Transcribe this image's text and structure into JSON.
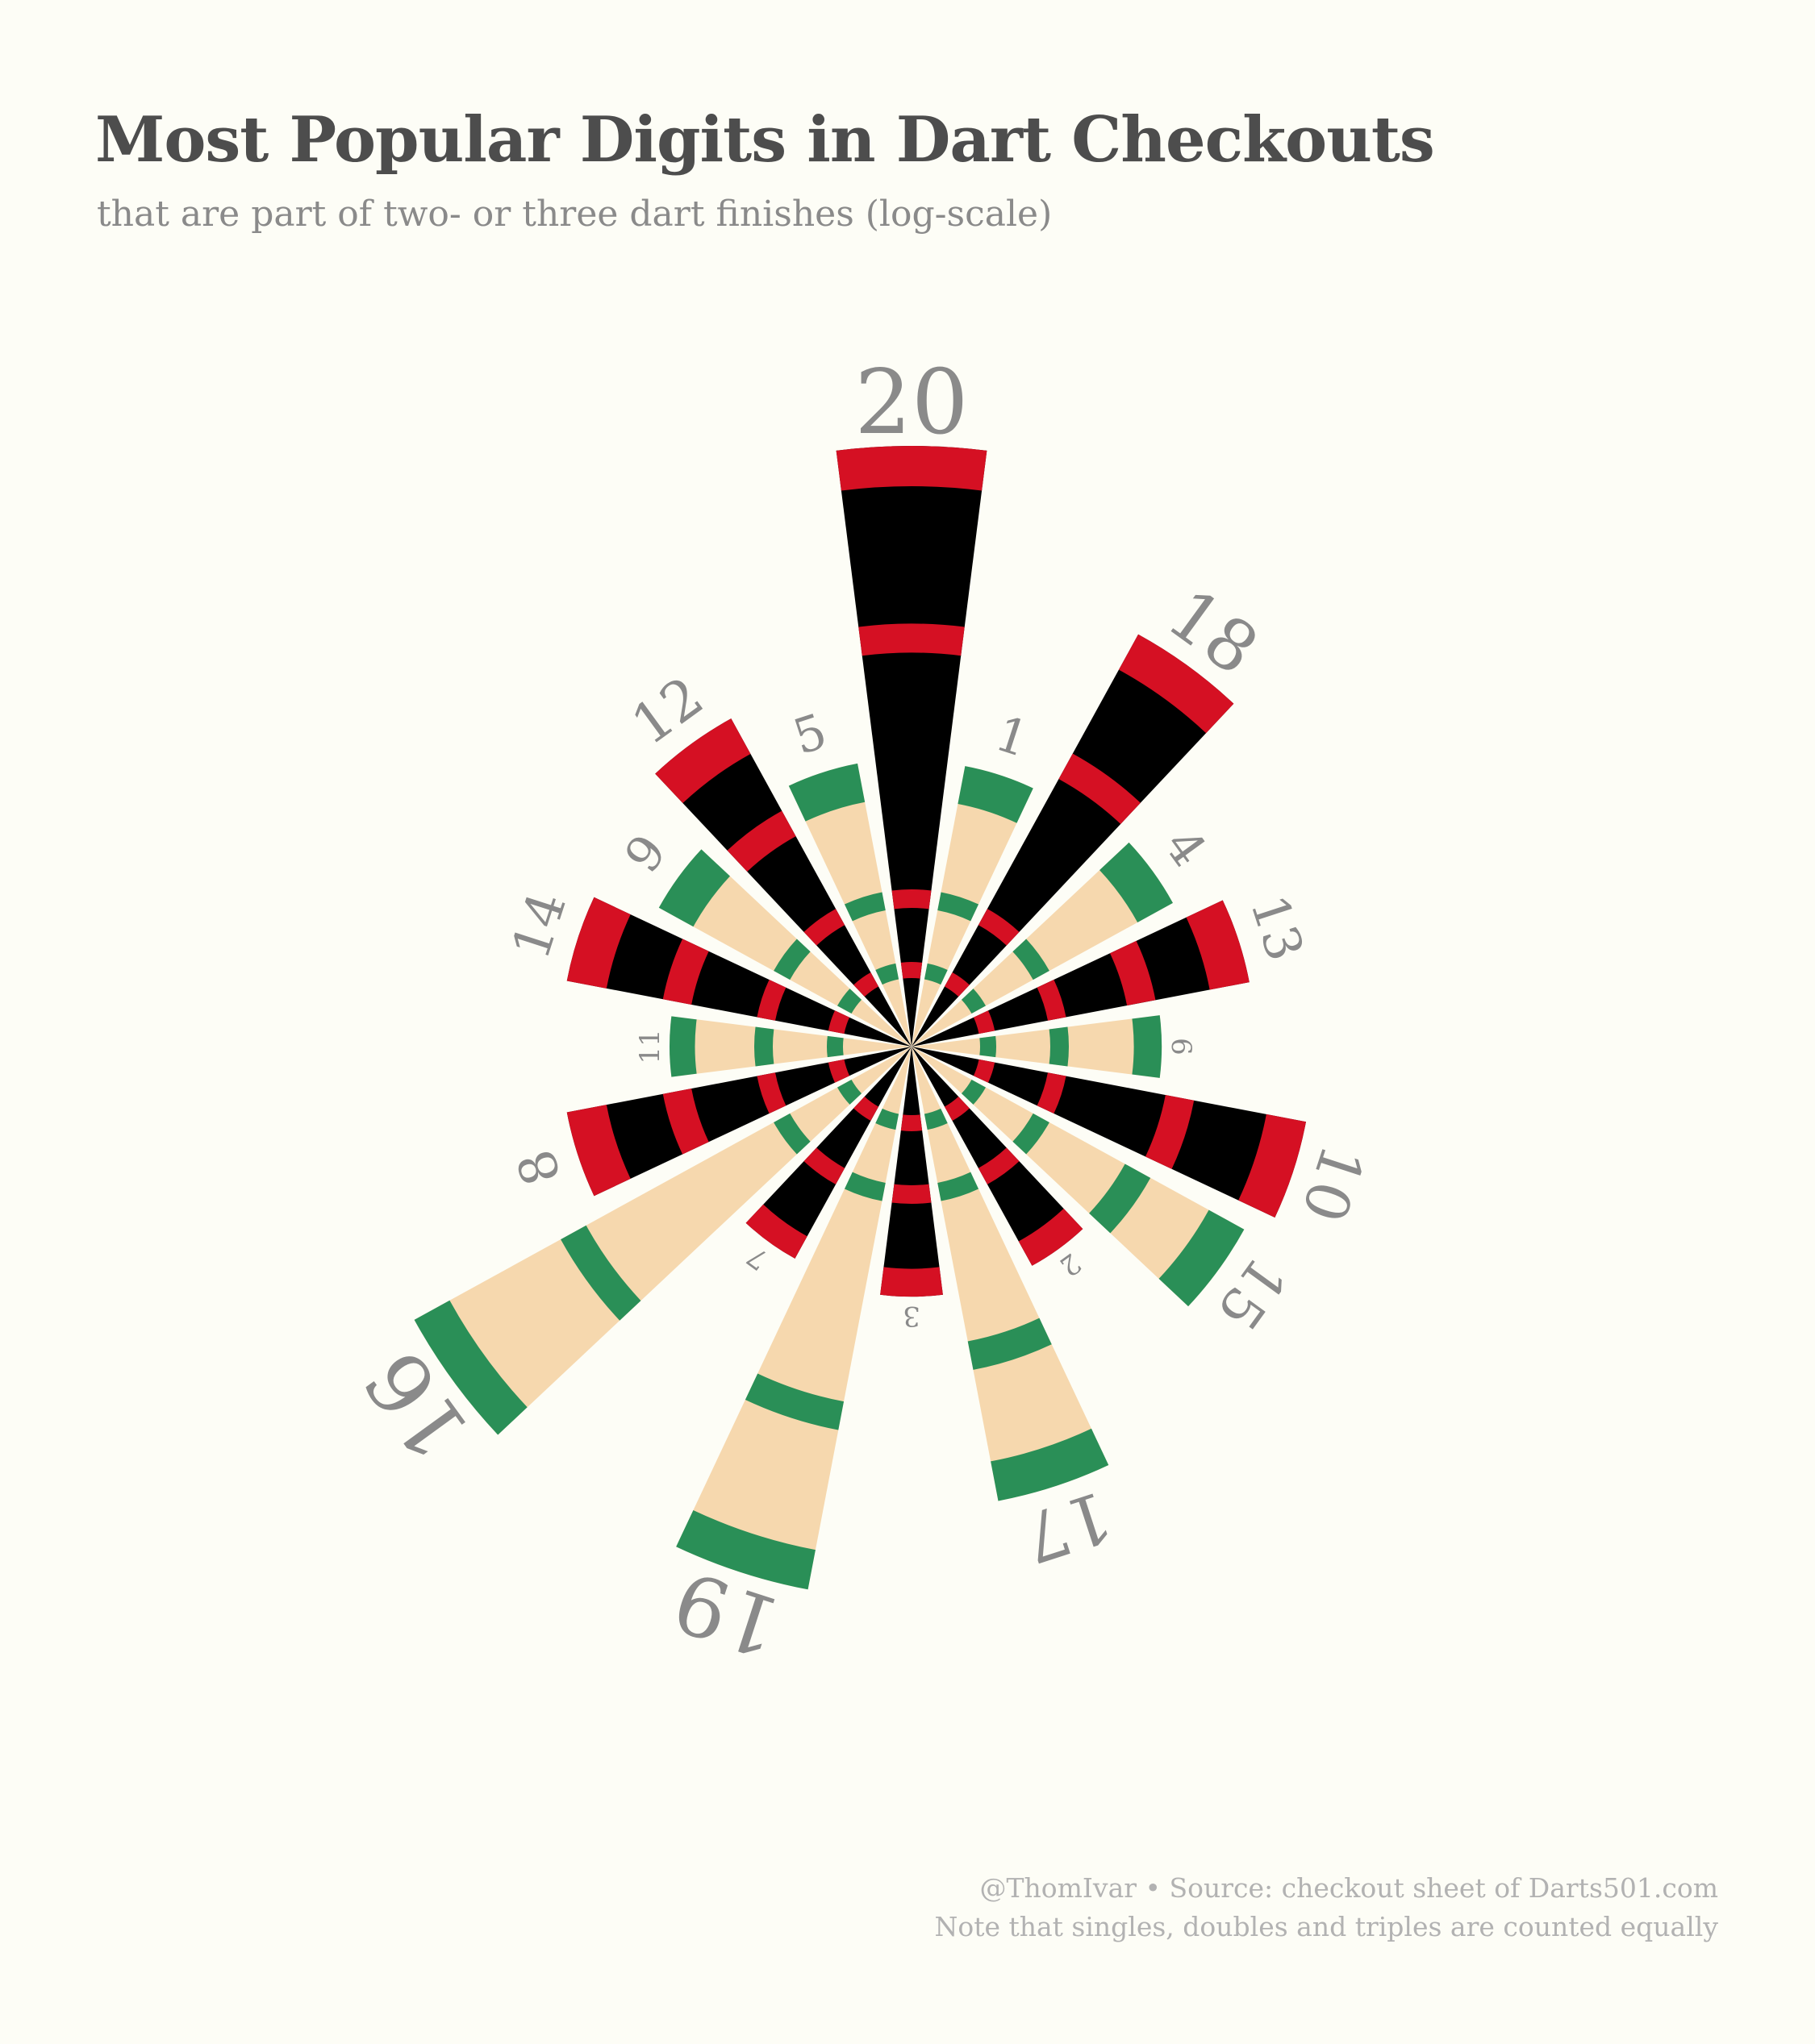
{
  "title": "Most Popular Digits in Dart Checkouts",
  "subtitle": "that are part of two- or three dart finishes (log-scale)",
  "caption": {
    "line1": "@ThomIvar • Source: checkout sheet of Darts501.com",
    "line2": "Note that singles, doubles and triples are counted equally"
  },
  "colors": {
    "background": "#fdfdf6",
    "red": "#d51023",
    "black": "#000000",
    "green": "#2a8f57",
    "cream": "#f6d8ae",
    "label": "#8a8a8a"
  },
  "chart_data": {
    "type": "polar-bar (dartboard)",
    "scale": "log",
    "segment_order_clockwise_from_top": [
      20,
      1,
      18,
      4,
      13,
      6,
      10,
      15,
      2,
      17,
      3,
      19,
      7,
      16,
      8,
      11,
      14,
      9,
      12,
      5
    ],
    "values": {
      "20": 100,
      "1": 3.5,
      "18": 25,
      "4": 4.0,
      "13": 6.5,
      "6": 2.4,
      "10": 12,
      "15": 9.5,
      "2": 2.4,
      "17": 23,
      "3": 2.4,
      "19": 60,
      "7": 2.2,
      "16": 70,
      "8": 7.0,
      "11": 2.2,
      "14": 7.0,
      "9": 3.6,
      "12": 9.0,
      "5": 3.6
    }
  }
}
